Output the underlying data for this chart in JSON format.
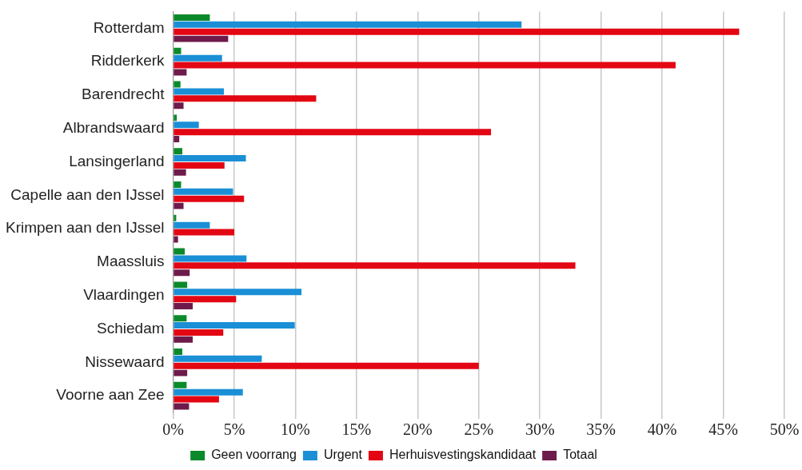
{
  "chart_data": {
    "type": "bar",
    "orientation": "horizontal",
    "categories": [
      "Rotterdam",
      "Ridderkerk",
      "Barendrecht",
      "Albrandswaard",
      "Lansingerland",
      "Capelle aan den IJssel",
      "Krimpen aan den IJssel",
      "Maassluis",
      "Vlaardingen",
      "Schiedam",
      "Nissewaard",
      "Voorne aan Zee"
    ],
    "series": [
      {
        "name": "Geen voorrang",
        "color": "#0a8a2a",
        "values": [
          3.0,
          0.65,
          0.6,
          0.3,
          0.75,
          0.65,
          0.25,
          0.95,
          1.15,
          1.1,
          0.75,
          1.1
        ]
      },
      {
        "name": "Urgent",
        "color": "#1a8fd6",
        "values": [
          28.5,
          4.0,
          4.15,
          2.1,
          5.95,
          4.9,
          3.0,
          6.0,
          10.5,
          9.95,
          7.25,
          5.7
        ]
      },
      {
        "name": "Herhuisvestingskandidaat",
        "color": "#e30613",
        "values": [
          46.3,
          41.1,
          11.7,
          26.0,
          4.2,
          5.8,
          5.0,
          32.9,
          5.15,
          4.1,
          25.0,
          3.75
        ]
      },
      {
        "name": "Totaal",
        "color": "#6e1a4a",
        "values": [
          4.5,
          1.1,
          0.85,
          0.5,
          1.05,
          0.85,
          0.4,
          1.35,
          1.6,
          1.6,
          1.15,
          1.3
        ]
      }
    ],
    "xlim": [
      0,
      50
    ],
    "xticks": [
      {
        "value": 0,
        "label": "0%"
      },
      {
        "value": 5,
        "label": "5%"
      },
      {
        "value": 10,
        "label": "10%"
      },
      {
        "value": 15,
        "label": "15%"
      },
      {
        "value": 20,
        "label": "20%"
      },
      {
        "value": 25,
        "label": "25%"
      },
      {
        "value": 30,
        "label": "30%"
      },
      {
        "value": 35,
        "label": "35%"
      },
      {
        "value": 40,
        "label": "40%"
      },
      {
        "value": 45,
        "label": "45%"
      },
      {
        "value": 50,
        "label": "50%"
      }
    ],
    "grid": "x",
    "legend": "bottom"
  }
}
